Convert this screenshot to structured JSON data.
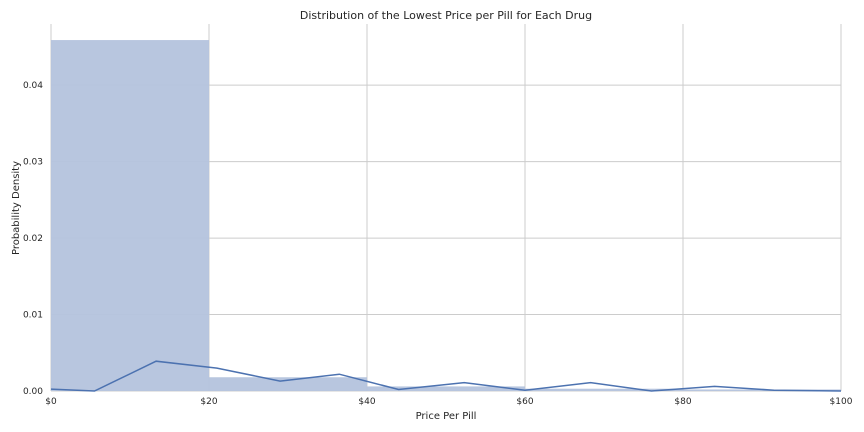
{
  "chart_data": {
    "type": "histogram",
    "title": "Distribution of the Lowest Price per Pill for Each Drug",
    "xlabel": "Price Per Pill",
    "ylabel": "Probability Density",
    "xlim": [
      0,
      100
    ],
    "ylim": [
      0,
      0.048
    ],
    "x_ticks": [
      {
        "value": 0,
        "label": "$0"
      },
      {
        "value": 20,
        "label": "$20"
      },
      {
        "value": 40,
        "label": "$40"
      },
      {
        "value": 60,
        "label": "$60"
      },
      {
        "value": 80,
        "label": "$80"
      },
      {
        "value": 100,
        "label": "$100"
      }
    ],
    "y_ticks": [
      {
        "value": 0.0,
        "label": "0.00"
      },
      {
        "value": 0.01,
        "label": "0.01"
      },
      {
        "value": 0.02,
        "label": "0.02"
      },
      {
        "value": 0.03,
        "label": "0.03"
      },
      {
        "value": 0.04,
        "label": "0.04"
      }
    ],
    "bins": [
      {
        "x0": 0,
        "x1": 20,
        "density": 0.0459
      },
      {
        "x0": 20,
        "x1": 40,
        "density": 0.0018
      },
      {
        "x0": 40,
        "x1": 60,
        "density": 0.0006
      },
      {
        "x0": 60,
        "x1": 80,
        "density": 0.0003
      },
      {
        "x0": 80,
        "x1": 100,
        "density": 0.0002
      }
    ],
    "kde_line": {
      "x": [
        0,
        5.5,
        13.3,
        21,
        29,
        36.5,
        44,
        52.3,
        60,
        68.3,
        76,
        84,
        91.5,
        100
      ],
      "y": [
        0.00025,
        0.0,
        0.0039,
        0.003,
        0.0013,
        0.0022,
        0.0002,
        0.0011,
        0.0001,
        0.0011,
        0.0,
        0.0006,
        0.0001,
        0.0
      ]
    },
    "grid": true,
    "colors": {
      "bar": "#b4c3dd",
      "line": "#4c72b0",
      "grid": "#cccccc",
      "text": "#262626"
    }
  }
}
